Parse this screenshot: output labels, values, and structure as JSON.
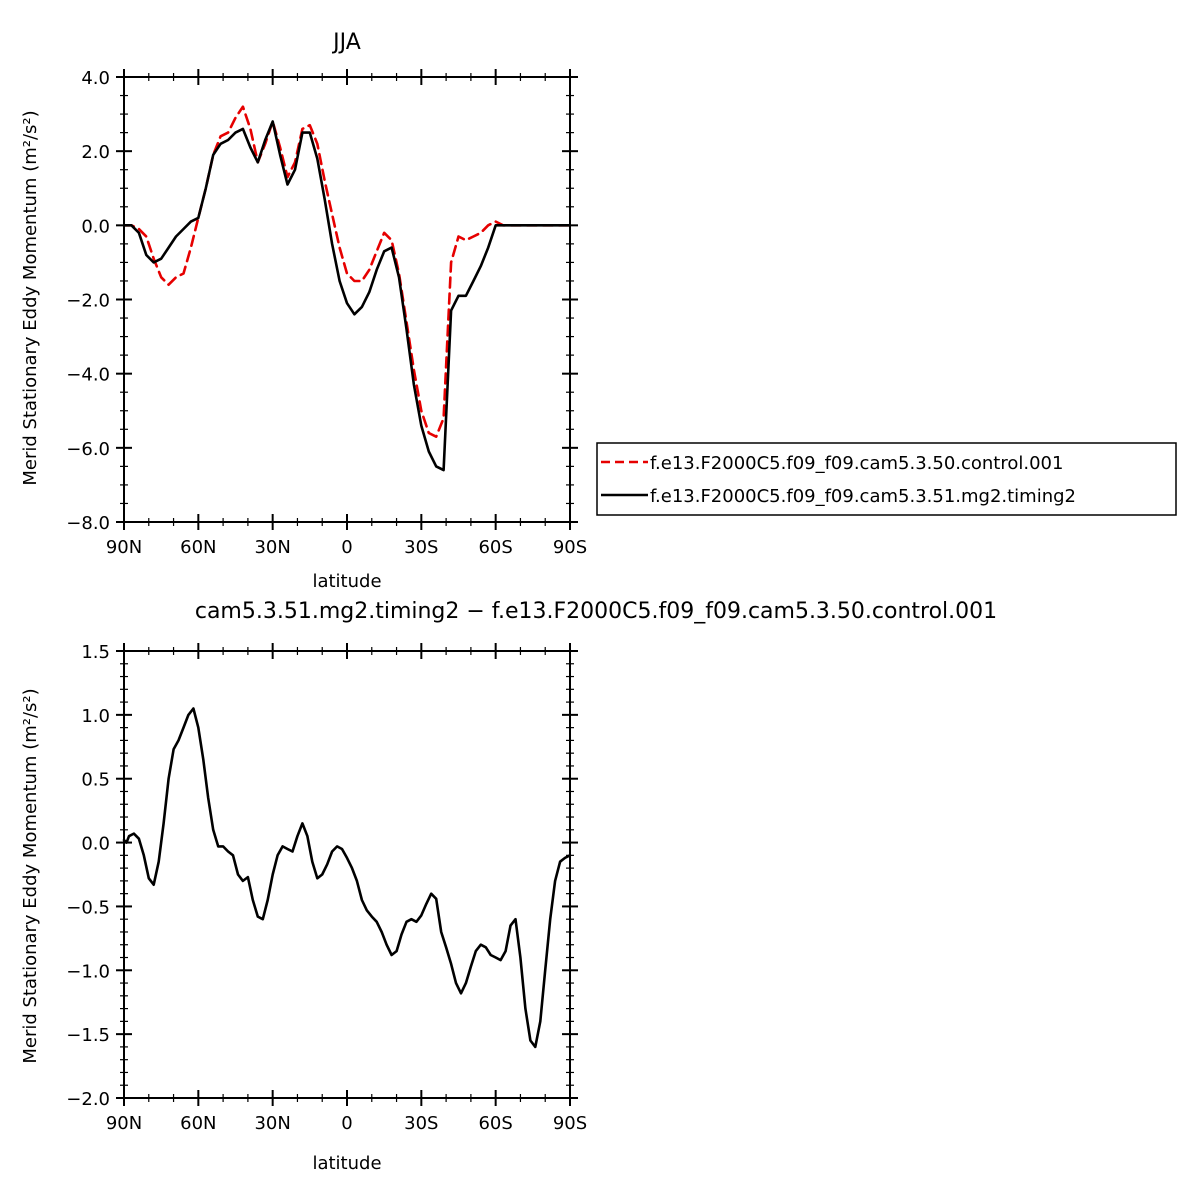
{
  "chart_data": [
    {
      "type": "line",
      "title": "JJA",
      "xlabel": "latitude",
      "ylabel": "Merid Stationary Eddy Momentum (m²/s²)",
      "xlim": [
        90,
        -90
      ],
      "ylim": [
        -8,
        4
      ],
      "xticks": [
        90,
        60,
        30,
        0,
        -30,
        -60,
        -90
      ],
      "xtick_labels": [
        "90N",
        "60N",
        "30N",
        "0",
        "30S",
        "60S",
        "90S"
      ],
      "yticks": [
        -8,
        -6,
        -4,
        -2,
        0,
        2,
        4
      ],
      "ytick_labels": [
        "−8.0",
        "−6.0",
        "−4.0",
        "−2.0",
        "0.0",
        "2.0",
        "4.0"
      ],
      "grid": false,
      "legend": "right",
      "x": [
        90,
        87,
        84,
        81,
        78,
        75,
        72,
        69,
        66,
        63,
        60,
        57,
        54,
        51,
        48,
        45,
        42,
        39,
        36,
        33,
        30,
        27,
        24,
        21,
        18,
        15,
        12,
        9,
        6,
        3,
        0,
        -3,
        -6,
        -9,
        -12,
        -15,
        -18,
        -21,
        -24,
        -27,
        -30,
        -33,
        -36,
        -39,
        -42,
        -45,
        -48,
        -51,
        -54,
        -57,
        -60,
        -63,
        -66,
        -69,
        -72,
        -75,
        -78,
        -81,
        -84,
        -87,
        -90
      ],
      "series": [
        {
          "name": "f.e13.F2000C5.f09_f09.cam5.3.50.control.001",
          "color": "#e60000",
          "dash": true,
          "values": [
            0.0,
            0.0,
            -0.1,
            -0.3,
            -0.9,
            -1.4,
            -1.6,
            -1.4,
            -1.3,
            -0.6,
            0.2,
            1.0,
            1.9,
            2.4,
            2.5,
            2.9,
            3.2,
            2.6,
            1.7,
            2.2,
            2.8,
            2.1,
            1.3,
            1.7,
            2.6,
            2.7,
            2.2,
            1.2,
            0.3,
            -0.6,
            -1.3,
            -1.5,
            -1.5,
            -1.2,
            -0.7,
            -0.2,
            -0.4,
            -1.3,
            -2.6,
            -3.9,
            -5.0,
            -5.6,
            -5.7,
            -5.2,
            -1.0,
            -0.3,
            -0.4,
            -0.3,
            -0.2,
            0.0,
            0.1,
            0.0,
            0.0,
            0.0,
            0.0,
            0.0,
            0.0,
            0.0,
            0.0,
            0.0,
            0.0
          ]
        },
        {
          "name": "f.e13.F2000C5.f09_f09.cam5.3.51.mg2.timing2",
          "color": "#000000",
          "dash": false,
          "values": [
            0.0,
            0.0,
            -0.2,
            -0.8,
            -1.0,
            -0.9,
            -0.6,
            -0.3,
            -0.1,
            0.1,
            0.2,
            1.0,
            1.9,
            2.2,
            2.3,
            2.5,
            2.6,
            2.1,
            1.7,
            2.3,
            2.8,
            1.9,
            1.1,
            1.5,
            2.5,
            2.5,
            1.8,
            0.7,
            -0.5,
            -1.5,
            -2.1,
            -2.4,
            -2.2,
            -1.8,
            -1.2,
            -0.7,
            -0.6,
            -1.4,
            -2.8,
            -4.3,
            -5.4,
            -6.1,
            -6.5,
            -6.6,
            -2.3,
            -1.9,
            -1.9,
            -1.5,
            -1.1,
            -0.6,
            0.0,
            0.0,
            0.0,
            0.0,
            0.0,
            0.0,
            0.0,
            0.0,
            0.0,
            0.0,
            0.0
          ]
        }
      ]
    },
    {
      "type": "line",
      "title": "cam5.3.51.mg2.timing2 − f.e13.F2000C5.f09_f09.cam5.3.50.control.001",
      "xlabel": "latitude",
      "ylabel": "Merid Stationary Eddy Momentum (m²/s²)",
      "xlim": [
        90,
        -90
      ],
      "ylim": [
        -2.0,
        1.5
      ],
      "xticks": [
        90,
        60,
        30,
        0,
        -30,
        -60,
        -90
      ],
      "xtick_labels": [
        "90N",
        "60N",
        "30N",
        "0",
        "30S",
        "60S",
        "90S"
      ],
      "yticks": [
        -2.0,
        -1.5,
        -1.0,
        -0.5,
        0.0,
        0.5,
        1.0,
        1.5
      ],
      "ytick_labels": [
        "−2.0",
        "−1.5",
        "−1.0",
        "−0.5",
        "0.0",
        "0.5",
        "1.0",
        "1.5"
      ],
      "grid": false,
      "x": [
        90,
        89,
        88,
        87,
        86,
        85,
        84,
        82,
        80,
        78,
        76,
        74,
        72,
        70,
        68,
        66,
        64,
        62,
        60,
        58,
        56,
        54,
        52,
        50,
        48,
        46,
        44,
        42,
        40,
        38,
        36,
        34,
        32,
        30,
        28,
        26,
        24,
        22,
        20,
        18,
        16,
        14,
        12,
        10,
        8,
        6,
        4,
        2,
        0,
        -2,
        -4,
        -6,
        -8,
        -10,
        -12,
        -14,
        -16,
        -18,
        -20,
        -22,
        -24,
        -26,
        -28,
        -30,
        -32,
        -34,
        -36,
        -38,
        -40,
        -42,
        -44,
        -46,
        -48,
        -50,
        -52,
        -54,
        -56,
        -58,
        -60,
        -62,
        -64,
        -66,
        -68,
        -70,
        -72,
        -74,
        -76,
        -78,
        -80,
        -82,
        -84,
        -86,
        -88,
        -90
      ],
      "series": [
        {
          "name": "",
          "color": "#000000",
          "values": [
            0.02,
            0.0,
            0.05,
            0.06,
            0.07,
            0.05,
            0.03,
            -0.1,
            -0.28,
            -0.33,
            -0.15,
            0.15,
            0.5,
            0.73,
            0.8,
            0.9,
            1.0,
            1.05,
            0.9,
            0.65,
            0.35,
            0.1,
            -0.03,
            -0.03,
            -0.07,
            -0.1,
            -0.25,
            -0.3,
            -0.27,
            -0.45,
            -0.58,
            -0.6,
            -0.45,
            -0.25,
            -0.1,
            -0.03,
            -0.05,
            -0.07,
            0.05,
            0.15,
            0.05,
            -0.15,
            -0.28,
            -0.25,
            -0.17,
            -0.07,
            -0.03,
            -0.05,
            -0.12,
            -0.2,
            -0.3,
            -0.45,
            -0.53,
            -0.58,
            -0.62,
            -0.7,
            -0.8,
            -0.88,
            -0.85,
            -0.72,
            -0.62,
            -0.6,
            -0.62,
            -0.57,
            -0.48,
            -0.4,
            -0.44,
            -0.7,
            -0.82,
            -0.95,
            -1.1,
            -1.18,
            -1.1,
            -0.97,
            -0.85,
            -0.8,
            -0.82,
            -0.88,
            -0.9,
            -0.92,
            -0.85,
            -0.65,
            -0.6,
            -0.9,
            -1.3,
            -1.55,
            -1.6,
            -1.4,
            -1.0,
            -0.6,
            -0.3,
            -0.15,
            -0.12,
            -0.1
          ]
        }
      ]
    }
  ]
}
